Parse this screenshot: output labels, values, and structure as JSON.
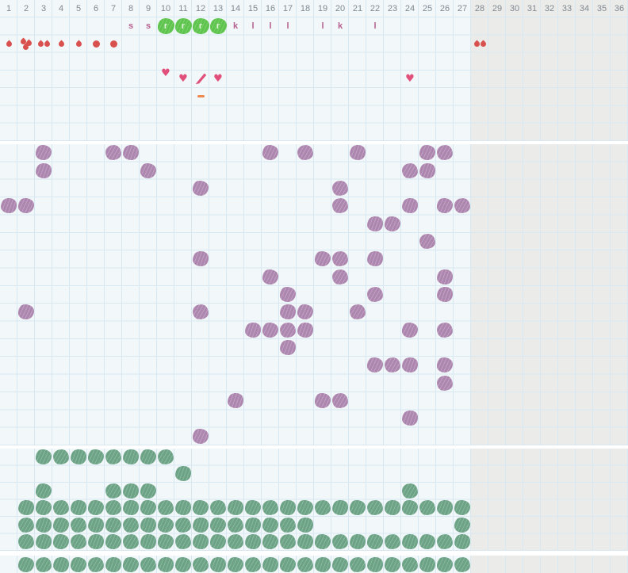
{
  "app": {
    "title": "Cycle chart grid",
    "columns": 36,
    "active_days": 27,
    "grey_from_day": 28
  },
  "palette": {
    "bg": "#f2f7f9",
    "grey": "#ebebe9",
    "line": "#d8e8f2",
    "divider": "#ffffff",
    "day_num": "#7f8891",
    "letter": "#b5608e",
    "highlight": "#5ec44f",
    "highlight_light": "#79d167",
    "highlight_letter": "#e2f5da",
    "flow_red": "#d9514e",
    "heart_pink": "#e0507a",
    "note_orange": "#ee8a4f",
    "mark_purple": "#ac86ae",
    "mark_purple_light": "#c0a0c1",
    "mark_green": "#6ea287",
    "mark_green_light": "#86b89c"
  },
  "header_days": [
    "1",
    "2",
    "3",
    "4",
    "5",
    "6",
    "7",
    "8",
    "9",
    "10",
    "11",
    "12",
    "13",
    "14",
    "15",
    "16",
    "17",
    "18",
    "19",
    "20",
    "21",
    "22",
    "23",
    "24",
    "25",
    "26",
    "27",
    "28",
    "29",
    "30",
    "31",
    "32",
    "33",
    "34",
    "35",
    "36"
  ],
  "symptom_rows": {
    "letters": [
      {
        "day": 8,
        "label": "s",
        "highlighted": false
      },
      {
        "day": 9,
        "label": "s",
        "highlighted": false
      },
      {
        "day": 10,
        "label": "r",
        "highlighted": true
      },
      {
        "day": 11,
        "label": "r",
        "highlighted": true
      },
      {
        "day": 12,
        "label": "r",
        "highlighted": true
      },
      {
        "day": 13,
        "label": "r",
        "highlighted": true
      },
      {
        "day": 14,
        "label": "k",
        "highlighted": false
      },
      {
        "day": 15,
        "label": "l",
        "highlighted": false
      },
      {
        "day": 16,
        "label": "l",
        "highlighted": false
      },
      {
        "day": 17,
        "label": "l",
        "highlighted": false
      },
      {
        "day": 19,
        "label": "l",
        "highlighted": false
      },
      {
        "day": 20,
        "label": "k",
        "highlighted": false
      },
      {
        "day": 22,
        "label": "l",
        "highlighted": false
      }
    ],
    "flow": [
      {
        "day": 1,
        "icon": "droplet-icon",
        "variant": "single"
      },
      {
        "day": 2,
        "icon": "droplet-icon",
        "variant": "triple"
      },
      {
        "day": 3,
        "icon": "droplet-icon",
        "variant": "double"
      },
      {
        "day": 4,
        "icon": "droplet-icon",
        "variant": "single"
      },
      {
        "day": 5,
        "icon": "droplet-icon",
        "variant": "single"
      },
      {
        "day": 6,
        "icon": "dot-icon",
        "variant": "dot"
      },
      {
        "day": 7,
        "icon": "dot-icon",
        "variant": "dot"
      },
      {
        "day": 28,
        "icon": "droplet-icon",
        "variant": "double"
      }
    ],
    "events": [
      {
        "day": 10,
        "icon": "heart-icon",
        "raised": true
      },
      {
        "day": 11,
        "icon": "heart-icon",
        "raised": false
      },
      {
        "day": 12,
        "icon": "pencil-icon",
        "raised": false
      },
      {
        "day": 13,
        "icon": "heart-icon",
        "raised": false
      },
      {
        "day": 24,
        "icon": "heart-icon",
        "raised": false
      }
    ],
    "notes": [
      {
        "day": 12,
        "icon": "dash-icon"
      }
    ]
  },
  "middle_grid": {
    "marker": "scribble-purple",
    "rows": [
      {
        "days": [
          3,
          7,
          8,
          16,
          18,
          21,
          25,
          26
        ]
      },
      {
        "days": [
          3,
          9,
          24,
          25
        ]
      },
      {
        "days": [
          12,
          20
        ]
      },
      {
        "days": [
          1,
          2,
          20,
          24,
          26,
          27
        ]
      },
      {
        "days": [
          22,
          23
        ]
      },
      {
        "days": [
          25
        ]
      },
      {
        "days": [
          12,
          19,
          20,
          22
        ]
      },
      {
        "days": [
          16,
          20,
          26
        ]
      },
      {
        "days": [
          17,
          22,
          26
        ]
      },
      {
        "days": [
          2,
          12,
          17,
          18,
          21
        ]
      },
      {
        "days": [
          15,
          16,
          17,
          18,
          24,
          26
        ]
      },
      {
        "days": [
          17
        ]
      },
      {
        "days": [
          22,
          23,
          24,
          26
        ]
      },
      {
        "days": [
          26
        ]
      },
      {
        "days": [
          14,
          19,
          20
        ]
      },
      {
        "days": [
          24
        ]
      },
      {
        "days": [
          12
        ]
      }
    ]
  },
  "bottom_grid": {
    "marker": "scribble-green",
    "rows": [
      {
        "days": [
          3,
          4,
          5,
          6,
          7,
          8,
          9,
          10
        ]
      },
      {
        "days": [
          11
        ]
      },
      {
        "days": [
          3,
          7,
          8,
          9,
          24
        ]
      },
      {
        "days": [
          2,
          3,
          4,
          5,
          6,
          7,
          8,
          9,
          10,
          11,
          12,
          13,
          14,
          15,
          16,
          17,
          18,
          19,
          20,
          21,
          22,
          23,
          24,
          25,
          26,
          27
        ]
      },
      {
        "days": [
          2,
          3,
          4,
          5,
          6,
          7,
          8,
          9,
          10,
          11,
          12,
          13,
          14,
          15,
          16,
          17,
          18,
          27
        ]
      },
      {
        "days": [
          2,
          3,
          4,
          5,
          6,
          7,
          8,
          9,
          10,
          11,
          12,
          13,
          14,
          15,
          16,
          17,
          18,
          19,
          20,
          21,
          22,
          23,
          24,
          25,
          26,
          27
        ]
      }
    ]
  },
  "strip_grid": {
    "marker": "scribble-green",
    "days": [
      2,
      3,
      4,
      5,
      6,
      7,
      8,
      9,
      10,
      11,
      12,
      13,
      14,
      15,
      16,
      17,
      18,
      19,
      20,
      21,
      22,
      23,
      24,
      25,
      26,
      27
    ]
  }
}
